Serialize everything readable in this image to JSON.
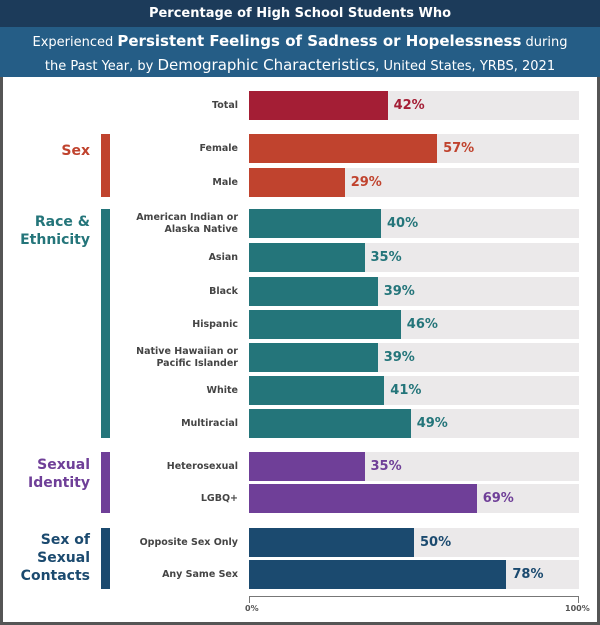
{
  "header": {
    "line1": "Percentage of High School Students Who",
    "line2_a": "Experienced ",
    "line2_b": "Persistent Feelings of Sadness or Hopelessness",
    "line2_c": " during",
    "line3_a": "the Past Year, by ",
    "line3_b": "Demographic Characteristics",
    "line3_c": ", United States, YRBS, 2021"
  },
  "chart_data": {
    "type": "bar",
    "orientation": "horizontal",
    "xlim": [
      0,
      100
    ],
    "grid": false,
    "tick_labels": [
      "0%",
      "100%"
    ],
    "groups": [
      {
        "name": "",
        "color": "#a41e35",
        "bars": [
          {
            "label": "Total",
            "value": 42
          }
        ]
      },
      {
        "name": "Sex",
        "color": "#c0432e",
        "bars": [
          {
            "label": "Female",
            "value": 57
          },
          {
            "label": "Male",
            "value": 29
          }
        ]
      },
      {
        "name": "Race & Ethnicity",
        "color": "#24757a",
        "bars": [
          {
            "label": "American Indian or Alaska Native",
            "value": 40
          },
          {
            "label": "Asian",
            "value": 35
          },
          {
            "label": "Black",
            "value": 39
          },
          {
            "label": "Hispanic",
            "value": 46
          },
          {
            "label": "Native Hawaiian or Pacific Islander",
            "value": 39
          },
          {
            "label": "White",
            "value": 41
          },
          {
            "label": "Multiracial",
            "value": 49
          }
        ]
      },
      {
        "name": "Sexual Identity",
        "color": "#6f3f98",
        "bars": [
          {
            "label": "Heterosexual",
            "value": 35
          },
          {
            "label": "LGBQ+",
            "value": 69
          }
        ]
      },
      {
        "name": "Sex of Sexual Contacts",
        "color": "#1b4a6f",
        "bars": [
          {
            "label": "Opposite Sex Only",
            "value": 50
          },
          {
            "label": "Any Same Sex",
            "value": 78
          }
        ]
      }
    ]
  }
}
